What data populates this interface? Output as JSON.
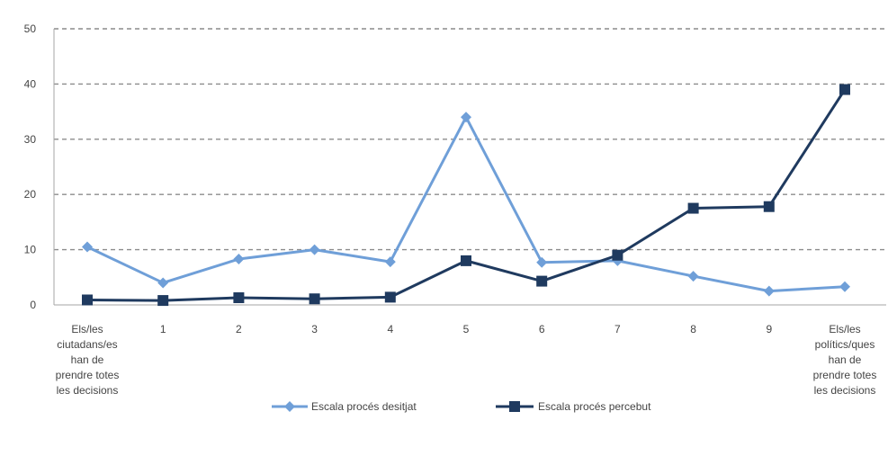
{
  "chart_data": {
    "type": "line",
    "title": "",
    "xlabel": "",
    "ylabel": "",
    "ylim": [
      0,
      50
    ],
    "yticks": [
      0,
      10,
      20,
      30,
      40,
      50
    ],
    "grid": true,
    "legend_position": "bottom",
    "categories": [
      [
        "Els/les",
        "ciutadans/es",
        "han de",
        "prendre totes",
        "les decisions"
      ],
      [
        "1"
      ],
      [
        "2"
      ],
      [
        "3"
      ],
      [
        "4"
      ],
      [
        "5"
      ],
      [
        "6"
      ],
      [
        "7"
      ],
      [
        "8"
      ],
      [
        "9"
      ],
      [
        "Els/les",
        "polítics/ques",
        "han de",
        "prendre totes",
        "les decisions"
      ]
    ],
    "series": [
      {
        "name": "Escala procés desitjat",
        "color": "#6f9fd8",
        "marker": "diamond",
        "values": [
          10.5,
          4,
          8.3,
          10,
          7.8,
          34,
          7.7,
          8,
          5.2,
          2.5,
          3.3
        ]
      },
      {
        "name": "Escala procés percebut",
        "color": "#1f3a5f",
        "marker": "square",
        "values": [
          0.9,
          0.8,
          1.3,
          1.1,
          1.4,
          8,
          4.3,
          9,
          17.5,
          17.8,
          39
        ]
      }
    ]
  }
}
